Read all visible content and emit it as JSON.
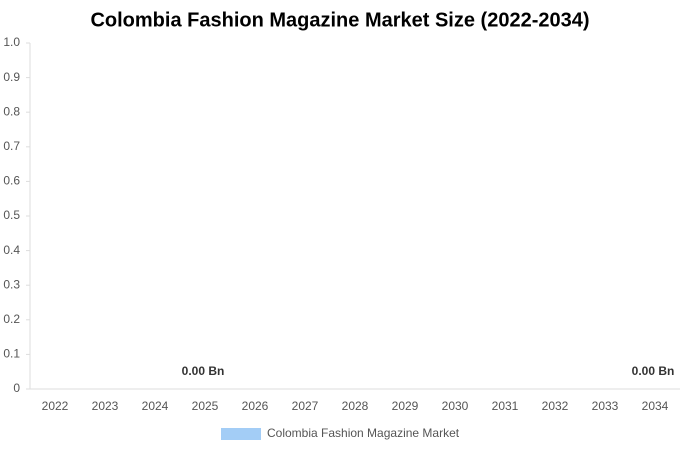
{
  "chart_data": {
    "type": "bar",
    "title": "Colombia Fashion Magazine Market Size (2022-2034)",
    "categories": [
      "2022",
      "2023",
      "2024",
      "2025",
      "2026",
      "2027",
      "2028",
      "2029",
      "2030",
      "2031",
      "2032",
      "2033",
      "2034"
    ],
    "series": [
      {
        "name": "Colombia Fashion Magazine Market",
        "color": "#a3cdf6",
        "values": [
          0,
          0,
          0,
          0,
          0,
          0,
          0,
          0,
          0,
          0,
          0,
          0,
          0
        ],
        "value_labels": [
          null,
          null,
          null,
          "0.00 Bn",
          null,
          null,
          null,
          null,
          null,
          null,
          null,
          null,
          "0.00 Bn"
        ]
      }
    ],
    "ylim": [
      0,
      1
    ],
    "yticks": [
      0,
      0.1,
      0.2,
      0.3,
      0.4,
      0.5,
      0.6,
      0.7,
      0.8,
      0.9,
      {
        "value": 1,
        "label": "1.0"
      }
    ],
    "grid": false,
    "legend": "bottom"
  }
}
